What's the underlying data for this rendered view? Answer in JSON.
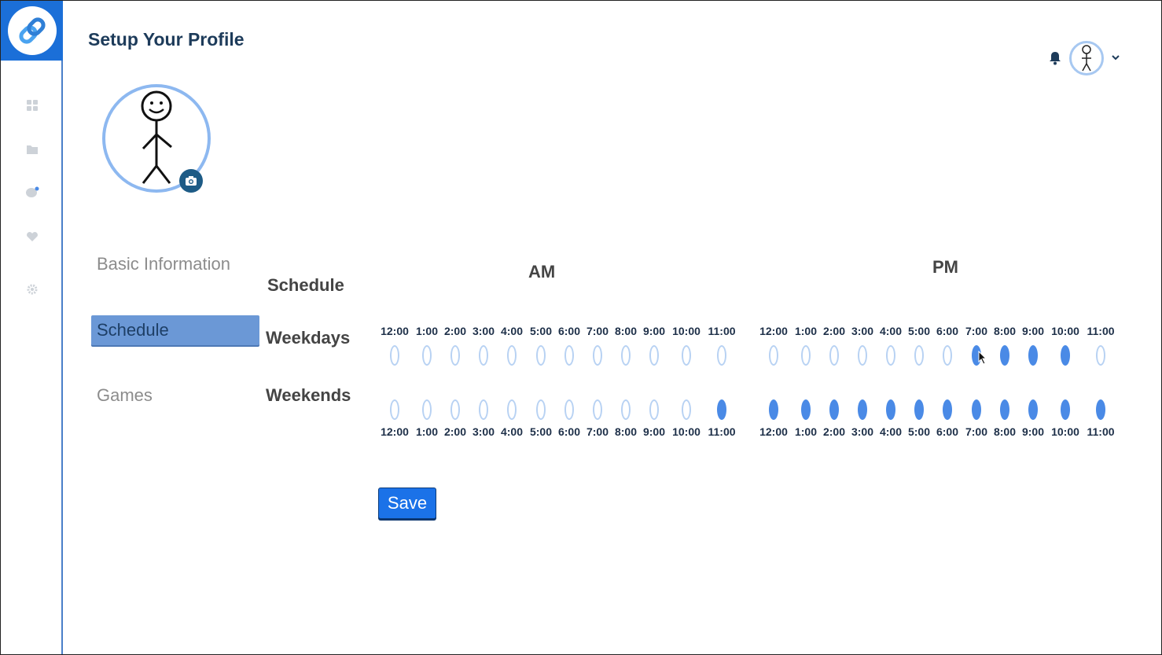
{
  "page": {
    "title": "Setup Your Profile"
  },
  "sidebar": {
    "icons": [
      "dashboard-icon",
      "folder-icon",
      "chat-icon",
      "heart-icon",
      "settings-icon"
    ]
  },
  "menu": {
    "items": [
      {
        "label": "Basic Information",
        "active": false
      },
      {
        "label": "Schedule",
        "active": true
      },
      {
        "label": "Games",
        "active": false
      }
    ]
  },
  "schedule": {
    "heading": "Schedule",
    "am_label": "AM",
    "pm_label": "PM",
    "weekdays_label": "Weekdays",
    "weekends_label": "Weekends",
    "am_times": [
      "12:00",
      "1:00",
      "2:00",
      "3:00",
      "4:00",
      "5:00",
      "6:00",
      "7:00",
      "8:00",
      "9:00",
      "10:00",
      "11:00"
    ],
    "pm_times": [
      "12:00",
      "1:00",
      "2:00",
      "3:00",
      "4:00",
      "5:00",
      "6:00",
      "7:00",
      "8:00",
      "9:00",
      "10:00",
      "11:00"
    ],
    "weekdays_am": [
      false,
      false,
      false,
      false,
      false,
      false,
      false,
      false,
      false,
      false,
      false,
      false
    ],
    "weekdays_pm": [
      false,
      false,
      false,
      false,
      false,
      false,
      false,
      true,
      true,
      true,
      true,
      false
    ],
    "weekends_am": [
      false,
      false,
      false,
      false,
      false,
      false,
      false,
      false,
      false,
      false,
      false,
      true
    ],
    "weekends_pm": [
      true,
      true,
      true,
      true,
      true,
      true,
      true,
      true,
      true,
      true,
      true,
      true
    ]
  },
  "actions": {
    "save_label": "Save"
  },
  "colors": {
    "brand": "#1b6fd8",
    "selected": "#4a8ae6",
    "unselected_border": "#b8d2f3",
    "title": "#1d3b5a"
  }
}
